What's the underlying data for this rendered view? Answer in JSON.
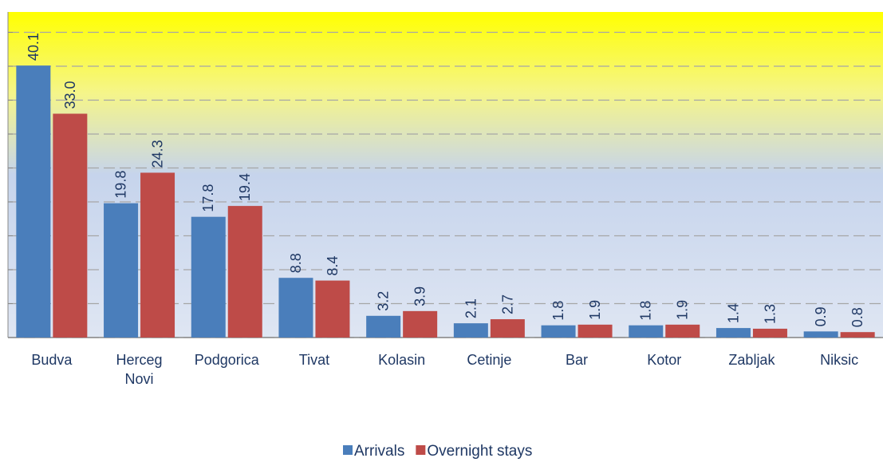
{
  "chart_data": {
    "type": "bar",
    "categories": [
      "Budva",
      "Herceg Novi",
      "Podgorica",
      "Tivat",
      "Kolasin",
      "Cetinje",
      "Bar",
      "Kotor",
      "Zabljak",
      "Niksic"
    ],
    "series": [
      {
        "name": "Arrivals",
        "color": "#4a7ebb",
        "values": [
          40.1,
          19.8,
          17.8,
          8.8,
          3.2,
          2.1,
          1.8,
          1.8,
          1.4,
          0.9
        ],
        "value_labels": [
          "40.1",
          "19.8",
          "17.8",
          "8.8",
          "3.2",
          "2.1",
          "1.8",
          "1.8",
          "1.4",
          "0.9"
        ]
      },
      {
        "name": "Overnight stays",
        "color": "#be4b48",
        "values": [
          33.0,
          24.3,
          19.4,
          8.4,
          3.9,
          2.7,
          1.9,
          1.9,
          1.3,
          0.8
        ],
        "value_labels": [
          "33.0",
          "24.3",
          "19.4",
          "8.4",
          "3.9",
          "2.7",
          "1.9",
          "1.9",
          "1.3",
          "0.8"
        ]
      }
    ],
    "ylim": [
      0,
      48
    ],
    "yticks": [
      0,
      5,
      10,
      15,
      20,
      25,
      30,
      35,
      40,
      45
    ],
    "grid": true
  }
}
